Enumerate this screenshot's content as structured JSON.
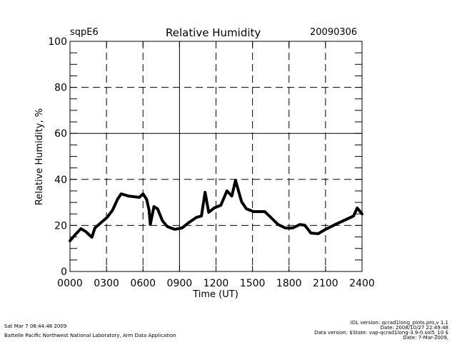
{
  "header": {
    "site": "sqpE6",
    "title": "Relative Humidity",
    "date": "20090306"
  },
  "footer": {
    "timestamp": "Sat Mar  7 08:44:48 2009",
    "organization": "Battelle Pacific Northwest National Laboratory, Arm Data Application",
    "idl_version": "IDL version: qcrad1long_plots.pro,v 1.1",
    "idl_date": "Date: 2008/10/27 22:49:48",
    "data_version": "Data version: $State: vap-qcrad1long-3.9-0.sol5_10 $",
    "data_date": "Date: 7-Mar-2009,"
  },
  "chart_data": {
    "type": "line",
    "title": "Relative Humidity",
    "xlabel": "Time (UT)",
    "ylabel": "Relative Humidity, %",
    "xlim": [
      0,
      24
    ],
    "ylim": [
      0,
      100
    ],
    "x_ticks": [
      0,
      3,
      6,
      9,
      12,
      15,
      18,
      21,
      24
    ],
    "x_tick_labels": [
      "0000",
      "0300",
      "0600",
      "0900",
      "1200",
      "1500",
      "1800",
      "2100",
      "2400"
    ],
    "y_ticks": [
      0,
      20,
      40,
      60,
      80,
      100
    ],
    "y_tick_labels": [
      "0",
      "20",
      "40",
      "60",
      "80",
      "100"
    ],
    "grid": true,
    "series": [
      {
        "name": "Relative Humidity",
        "color": "#000000",
        "x": [
          0.0,
          0.4,
          0.9,
          1.3,
          1.6,
          1.8,
          2.05,
          2.5,
          3.05,
          3.5,
          3.9,
          4.2,
          4.8,
          5.7,
          6.0,
          6.3,
          6.5,
          6.6,
          6.9,
          7.2,
          7.6,
          8.0,
          8.6,
          9.2,
          9.8,
          10.4,
          10.8,
          11.1,
          11.4,
          11.85,
          12.4,
          12.9,
          13.3,
          13.6,
          14.1,
          14.5,
          15.1,
          16.0,
          16.5,
          17.1,
          17.7,
          18.3,
          18.9,
          19.3,
          19.8,
          20.4,
          21.0,
          21.8,
          22.7,
          23.3,
          23.6,
          24.0
        ],
        "y": [
          13.3,
          15.8,
          18.6,
          17.3,
          15.8,
          14.9,
          18.9,
          21.0,
          23.5,
          26.6,
          31.3,
          33.7,
          32.8,
          32.2,
          33.7,
          31.3,
          26.6,
          20.4,
          28.2,
          27.2,
          22.0,
          19.5,
          18.3,
          18.9,
          21.4,
          23.5,
          24.1,
          34.4,
          25.7,
          27.6,
          28.8,
          35.0,
          32.8,
          39.6,
          30.3,
          27.2,
          26.0,
          26.0,
          23.5,
          20.4,
          18.9,
          18.9,
          20.4,
          20.1,
          16.7,
          16.4,
          18.3,
          20.4,
          22.6,
          24.1,
          27.6,
          25.0
        ]
      }
    ]
  }
}
